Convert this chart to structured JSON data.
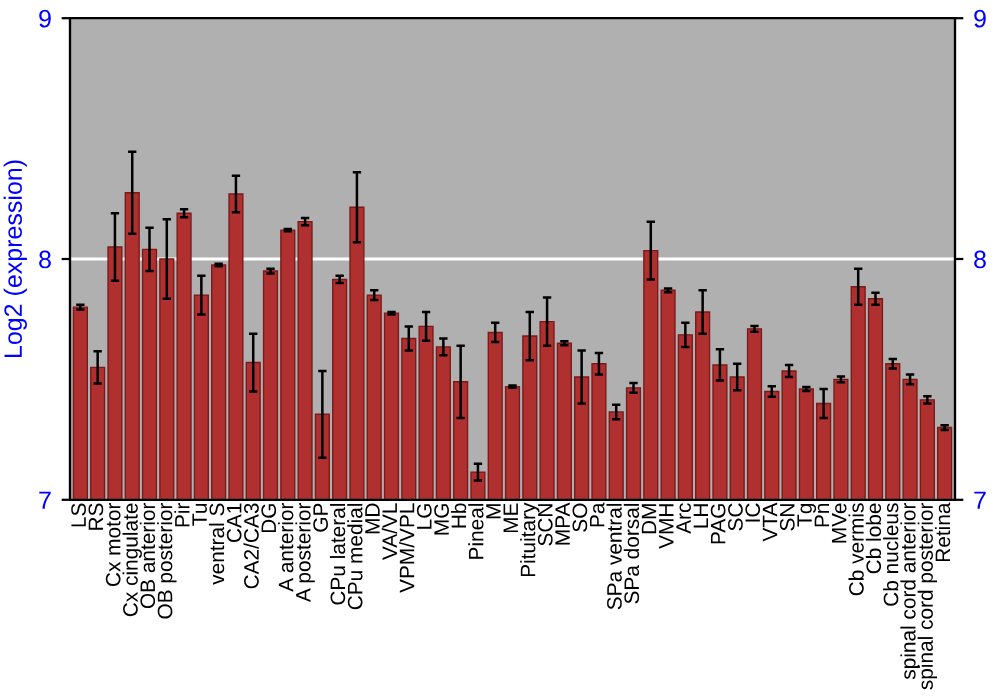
{
  "chart_data": {
    "type": "bar",
    "ylabel": "Log2 (expression)",
    "categories": [
      "LS",
      "RS",
      "Cx motor",
      "Cx cingulate",
      "OB anterior",
      "OB posterior",
      "Pir",
      "Tu",
      "ventral S",
      "CA1",
      "CA2/CA3",
      "DG",
      "A anterior",
      "A posterior",
      "GP",
      "CPu lateral",
      "CPu medial",
      "MD",
      "VA/VL",
      "VPM/VPL",
      "LG",
      "MG",
      "Hb",
      "Pineal",
      "M",
      "ME",
      "Pituitary",
      "SCN",
      "MPA",
      "SO",
      "Pa",
      "SPa ventral",
      "SPa dorsal",
      "DM",
      "VMH",
      "Arc",
      "LH",
      "PAG",
      "SC",
      "IC",
      "VTA",
      "SN",
      "Tg",
      "Pn",
      "MVe",
      "Cb vermis",
      "Cb lobe",
      "Cb nucleus",
      "spinal cord anterior",
      "spinal cord posterior",
      "Retina"
    ],
    "series": [
      {
        "color": "#b03030",
        "values": [
          7.8,
          7.55,
          8.05,
          8.275,
          8.04,
          8.0,
          8.19,
          7.85,
          7.975,
          8.27,
          7.57,
          7.95,
          8.12,
          8.155,
          7.355,
          7.915,
          8.215,
          7.85,
          7.775,
          7.67,
          7.72,
          7.635,
          7.49,
          7.115,
          7.695,
          7.47,
          7.68,
          7.74,
          7.65,
          7.51,
          7.565,
          7.365,
          7.465,
          8.035,
          7.87,
          7.685,
          7.78,
          7.56,
          7.51,
          7.71,
          7.45,
          7.535,
          7.46,
          7.4,
          7.5,
          7.885,
          7.835,
          7.565,
          7.5,
          7.415,
          7.3
        ],
        "errors": [
          0.01,
          0.067,
          0.14,
          0.17,
          0.09,
          0.165,
          0.017,
          0.08,
          0.005,
          0.076,
          0.12,
          0.01,
          0.005,
          0.015,
          0.18,
          0.015,
          0.145,
          0.02,
          0.005,
          0.05,
          0.06,
          0.035,
          0.15,
          0.035,
          0.04,
          0.005,
          0.1,
          0.1,
          0.008,
          0.11,
          0.045,
          0.03,
          0.02,
          0.12,
          0.008,
          0.05,
          0.09,
          0.065,
          0.055,
          0.012,
          0.022,
          0.025,
          0.008,
          0.06,
          0.012,
          0.075,
          0.025,
          0.02,
          0.02,
          0.015,
          0.01
        ]
      }
    ],
    "ylim": [
      7,
      9
    ],
    "yticks": [
      7,
      8,
      9
    ],
    "y2lim": [
      7,
      9
    ],
    "y2ticks": [
      7,
      8,
      9
    ],
    "grid": "y"
  }
}
